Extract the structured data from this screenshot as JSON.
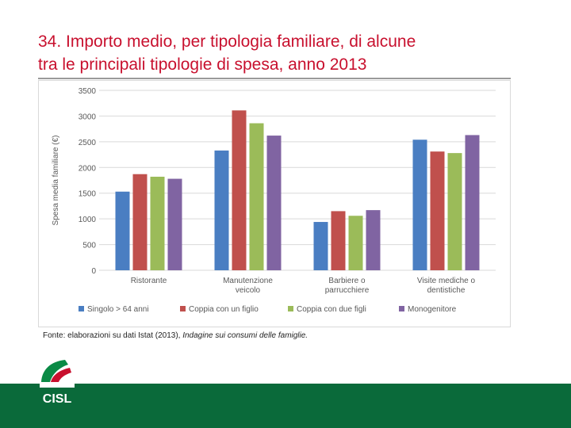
{
  "slide": {
    "title_line1": "34. Importo medio, per tipologia familiare, di alcune",
    "title_line2": "tra le principali tipologie di spesa, anno 2013"
  },
  "source": {
    "prefix": "Fonte: elaborazioni su dati Istat (2013), ",
    "italic": "Indagine sui consumi delle famiglie."
  },
  "logo": {
    "text": "CISL"
  },
  "colors": {
    "title": "#c8102e",
    "footer": "#0a6a3a",
    "series": [
      "#4a7ec2",
      "#c0504d",
      "#9bbb59",
      "#8064a2"
    ]
  },
  "chart_data": {
    "type": "bar",
    "title": "",
    "xlabel": "",
    "ylabel": "Spesa media familiare (€)",
    "ylim": [
      0,
      3500
    ],
    "yticks": [
      0,
      500,
      1000,
      1500,
      2000,
      2500,
      3000,
      3500
    ],
    "grid": true,
    "legend": "bottom",
    "categories": [
      [
        "Ristorante"
      ],
      [
        "Manutenzione",
        "veicolo"
      ],
      [
        "Barbiere o",
        "parrucchiere"
      ],
      [
        "Visite mediche o",
        "dentistiche"
      ]
    ],
    "series": [
      {
        "name": "Singolo > 64 anni",
        "values": [
          1530,
          2330,
          940,
          2540
        ]
      },
      {
        "name": "Coppia con un figlio",
        "values": [
          1870,
          3110,
          1150,
          2310
        ]
      },
      {
        "name": "Coppia con due figli",
        "values": [
          1820,
          2860,
          1060,
          2280
        ]
      },
      {
        "name": "Monogenitore",
        "values": [
          1780,
          2620,
          1170,
          2630
        ]
      }
    ]
  }
}
